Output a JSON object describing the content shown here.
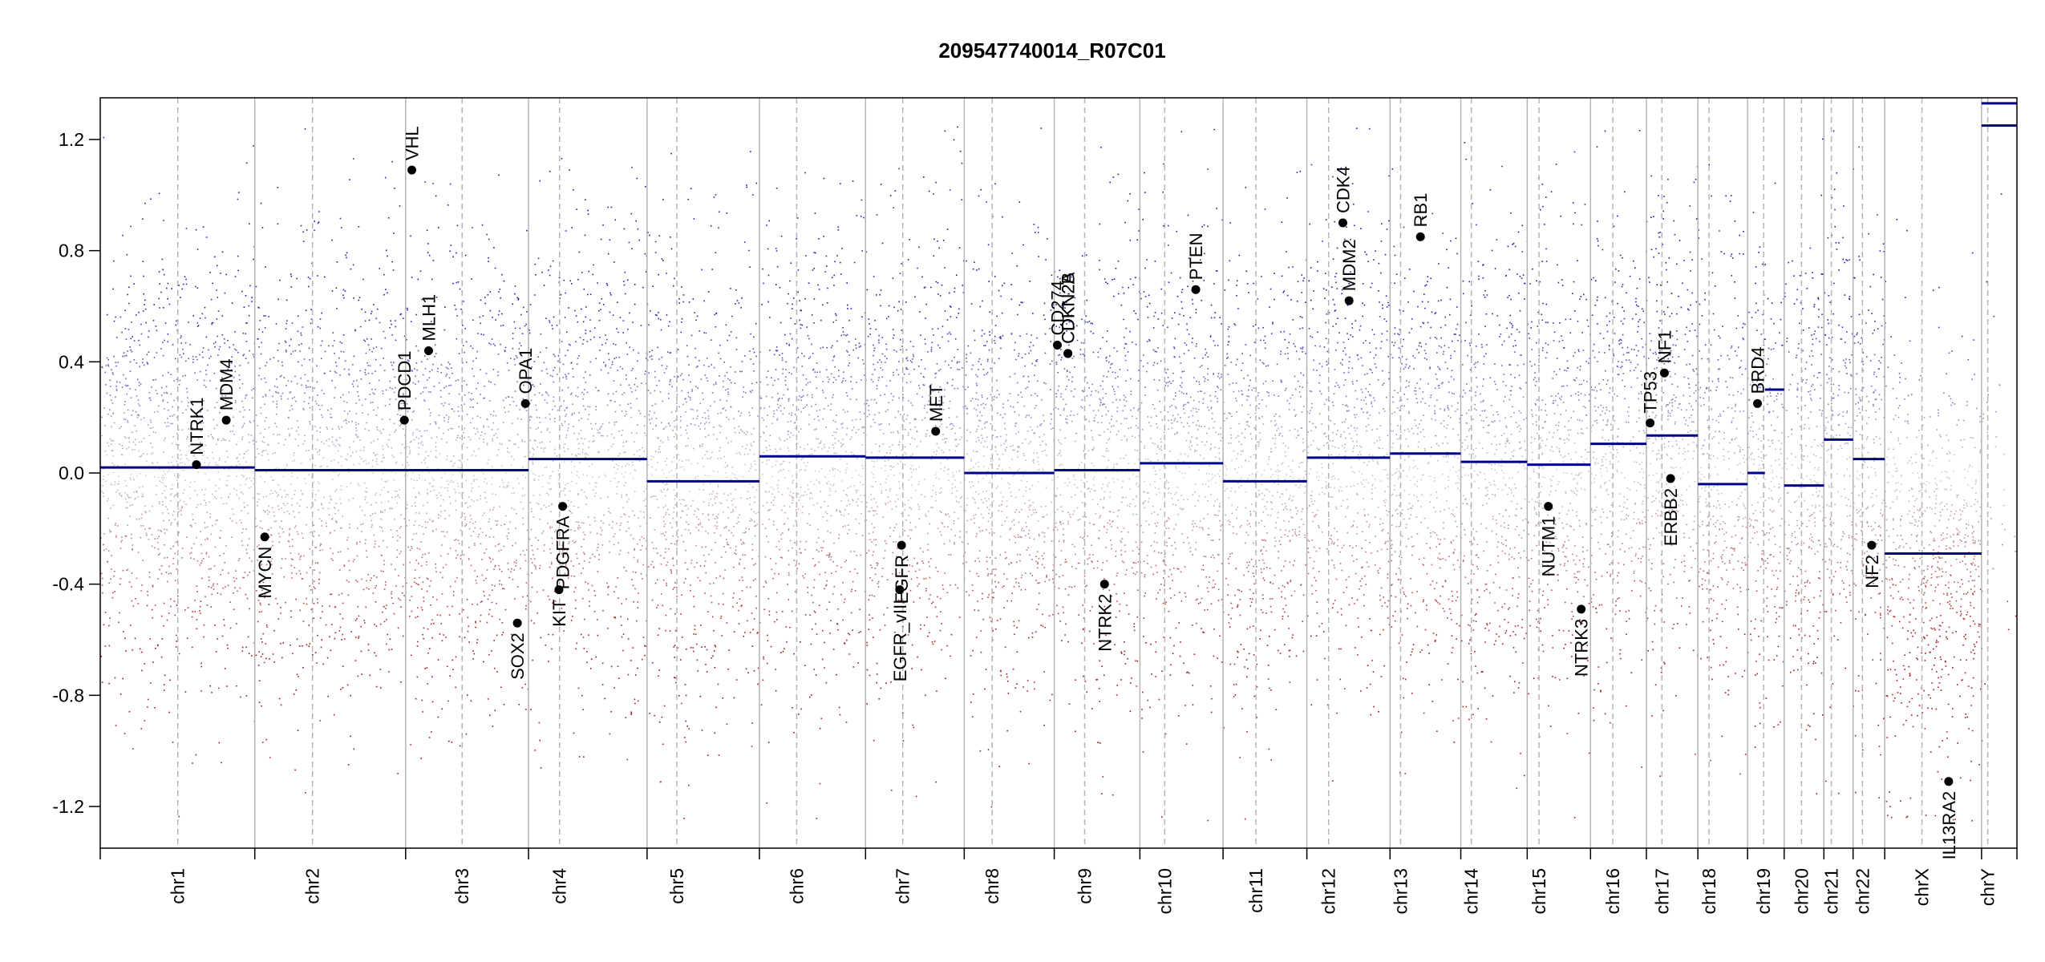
{
  "chart_data": {
    "type": "scatter",
    "title": "209547740014_R07C01",
    "xlabel": "",
    "ylabel": "",
    "ylim": [
      -1.35,
      1.35
    ],
    "yticks": [
      -1.2,
      -0.8,
      -0.4,
      0.0,
      0.4,
      0.8,
      1.2
    ],
    "ytick_labels": [
      "-1.2",
      "-0.8",
      "-0.4",
      "0.0",
      "0.4",
      "0.8",
      "1.2"
    ],
    "grid": false,
    "colors": {
      "gain": "#1a1aa6",
      "loss": "#a61a1a",
      "neutral": "#c8c8c8",
      "segment": "#00008b",
      "boundary": "#b4b4b4",
      "centromere": "#b4b4b4",
      "gene_point": "#000000"
    },
    "chromosomes": [
      {
        "name": "chr1",
        "start": 0,
        "end": 249,
        "centromere": 125,
        "seed": 11
      },
      {
        "name": "chr2",
        "start": 249,
        "end": 492,
        "centromere": 93,
        "seed": 12
      },
      {
        "name": "chr3",
        "start": 492,
        "end": 690,
        "centromere": 91,
        "seed": 13
      },
      {
        "name": "chr4",
        "start": 690,
        "end": 881,
        "centromere": 50,
        "seed": 14
      },
      {
        "name": "chr5",
        "start": 881,
        "end": 1062,
        "centromere": 48,
        "seed": 15
      },
      {
        "name": "chr6",
        "start": 1062,
        "end": 1233,
        "centromere": 60,
        "seed": 16
      },
      {
        "name": "chr7",
        "start": 1233,
        "end": 1392,
        "centromere": 60,
        "seed": 17
      },
      {
        "name": "chr8",
        "start": 1392,
        "end": 1537,
        "centromere": 45,
        "seed": 18
      },
      {
        "name": "chr9",
        "start": 1537,
        "end": 1675,
        "centromere": 49,
        "seed": 19
      },
      {
        "name": "chr10",
        "start": 1675,
        "end": 1809,
        "centromere": 40,
        "seed": 20
      },
      {
        "name": "chr11",
        "start": 1809,
        "end": 1944,
        "centromere": 53,
        "seed": 21
      },
      {
        "name": "chr12",
        "start": 1944,
        "end": 2078,
        "centromere": 35,
        "seed": 22
      },
      {
        "name": "chr13",
        "start": 2078,
        "end": 2192,
        "centromere": 17,
        "seed": 23
      },
      {
        "name": "chr14",
        "start": 2192,
        "end": 2299,
        "centromere": 17,
        "seed": 24
      },
      {
        "name": "chr15",
        "start": 2299,
        "end": 2401,
        "centromere": 19,
        "seed": 25
      },
      {
        "name": "chr16",
        "start": 2401,
        "end": 2491,
        "centromere": 36,
        "seed": 26
      },
      {
        "name": "chr17",
        "start": 2491,
        "end": 2574,
        "centromere": 25,
        "seed": 27
      },
      {
        "name": "chr18",
        "start": 2574,
        "end": 2654,
        "centromere": 18,
        "seed": 28
      },
      {
        "name": "chr19",
        "start": 2654,
        "end": 2713,
        "centromere": 26,
        "seed": 29
      },
      {
        "name": "chr20",
        "start": 2713,
        "end": 2777,
        "centromere": 28,
        "seed": 30
      },
      {
        "name": "chr21",
        "start": 2777,
        "end": 2824,
        "centromere": 12,
        "seed": 31
      },
      {
        "name": "chr22",
        "start": 2824,
        "end": 2875,
        "centromere": 15,
        "seed": 32
      },
      {
        "name": "chrX",
        "start": 2875,
        "end": 3031,
        "centromere": 60,
        "seed": 33
      },
      {
        "name": "chrY",
        "start": 3031,
        "end": 3088,
        "centromere": 10,
        "seed": 34
      }
    ],
    "segments": [
      {
        "chrom": "chr1",
        "x0": 0,
        "x1": 249,
        "value": 0.02
      },
      {
        "chrom": "chr2",
        "x0": 249,
        "x1": 492,
        "value": 0.01
      },
      {
        "chrom": "chr3",
        "x0": 492,
        "x1": 690,
        "value": 0.01
      },
      {
        "chrom": "chr4",
        "x0": 690,
        "x1": 881,
        "value": 0.05
      },
      {
        "chrom": "chr5",
        "x0": 881,
        "x1": 1062,
        "value": -0.03
      },
      {
        "chrom": "chr6",
        "x0": 1062,
        "x1": 1233,
        "value": 0.06
      },
      {
        "chrom": "chr7",
        "x0": 1233,
        "x1": 1392,
        "value": 0.055
      },
      {
        "chrom": "chr8",
        "x0": 1392,
        "x1": 1537,
        "value": 0.0
      },
      {
        "chrom": "chr9",
        "x0": 1537,
        "x1": 1675,
        "value": 0.01
      },
      {
        "chrom": "chr10",
        "x0": 1675,
        "x1": 1809,
        "value": 0.035
      },
      {
        "chrom": "chr11",
        "x0": 1809,
        "x1": 1944,
        "value": -0.03
      },
      {
        "chrom": "chr12",
        "x0": 1944,
        "x1": 2078,
        "value": 0.055
      },
      {
        "chrom": "chr13",
        "x0": 2078,
        "x1": 2192,
        "value": 0.07
      },
      {
        "chrom": "chr14",
        "x0": 2192,
        "x1": 2299,
        "value": 0.04
      },
      {
        "chrom": "chr15",
        "x0": 2299,
        "x1": 2401,
        "value": 0.03
      },
      {
        "chrom": "chr16",
        "x0": 2401,
        "x1": 2491,
        "value": 0.105
      },
      {
        "chrom": "chr17",
        "x0": 2491,
        "x1": 2574,
        "value": 0.135
      },
      {
        "chrom": "chr18",
        "x0": 2574,
        "x1": 2654,
        "value": -0.04
      },
      {
        "chrom": "chr19",
        "x0": 2654,
        "x1": 2682,
        "value": 0.0
      },
      {
        "chrom": "chr19",
        "x0": 2682,
        "x1": 2713,
        "value": 0.3
      },
      {
        "chrom": "chr20",
        "x0": 2713,
        "x1": 2777,
        "value": -0.045
      },
      {
        "chrom": "chr21",
        "x0": 2777,
        "x1": 2824,
        "value": 0.12
      },
      {
        "chrom": "chr22",
        "x0": 2824,
        "x1": 2875,
        "value": 0.05
      },
      {
        "chrom": "chrX",
        "x0": 2875,
        "x1": 3031,
        "value": -0.29
      },
      {
        "chrom": "chrY",
        "x0": 3031,
        "x1": 3088,
        "value": 1.33
      },
      {
        "chrom": "chrY",
        "x0": 3031,
        "x1": 3088,
        "value": 1.25
      }
    ],
    "genes": [
      {
        "name": "NTRK1",
        "x": 155,
        "value": 0.03
      },
      {
        "name": "MDM4",
        "x": 203,
        "value": 0.19
      },
      {
        "name": "MYCN",
        "x": 265,
        "value": -0.23
      },
      {
        "name": "PDCD1",
        "x": 490,
        "value": 0.19
      },
      {
        "name": "VHL",
        "x": 502,
        "value": 1.09
      },
      {
        "name": "MLH1",
        "x": 529,
        "value": 0.44
      },
      {
        "name": "SOX2",
        "x": 672,
        "value": -0.54
      },
      {
        "name": "OPA1",
        "x": 685,
        "value": 0.25
      },
      {
        "name": "KIT",
        "x": 739,
        "value": -0.42
      },
      {
        "name": "PDGFRA",
        "x": 745,
        "value": -0.12
      },
      {
        "name": "EGFR_vIII",
        "x": 1288,
        "value": -0.42
      },
      {
        "name": "EGFR",
        "x": 1291,
        "value": -0.26
      },
      {
        "name": "MET",
        "x": 1346,
        "value": 0.15
      },
      {
        "name": "CD274",
        "x": 1542,
        "value": 0.46
      },
      {
        "name": "CDKN2A",
        "x": 1559,
        "value": 0.43
      },
      {
        "name": "CDKN2B",
        "x": 1559,
        "value": 0.43
      },
      {
        "name": "NTRK2",
        "x": 1618,
        "value": -0.4
      },
      {
        "name": "PTEN",
        "x": 1765,
        "value": 0.66
      },
      {
        "name": "CDK4",
        "x": 2002,
        "value": 0.9
      },
      {
        "name": "MDM2",
        "x": 2012,
        "value": 0.62
      },
      {
        "name": "RB1",
        "x": 2127,
        "value": 0.85
      },
      {
        "name": "NUTM1",
        "x": 2333,
        "value": -0.12
      },
      {
        "name": "NTRK3",
        "x": 2386,
        "value": -0.49
      },
      {
        "name": "TP53",
        "x": 2497,
        "value": 0.18
      },
      {
        "name": "NF1",
        "x": 2520,
        "value": 0.36
      },
      {
        "name": "ERBB2",
        "x": 2530,
        "value": -0.02
      },
      {
        "name": "BRD4",
        "x": 2670,
        "value": 0.25
      },
      {
        "name": "NF2",
        "x": 2854,
        "value": -0.26
      },
      {
        "name": "IL13RA2",
        "x": 2978,
        "value": -1.11
      }
    ]
  }
}
